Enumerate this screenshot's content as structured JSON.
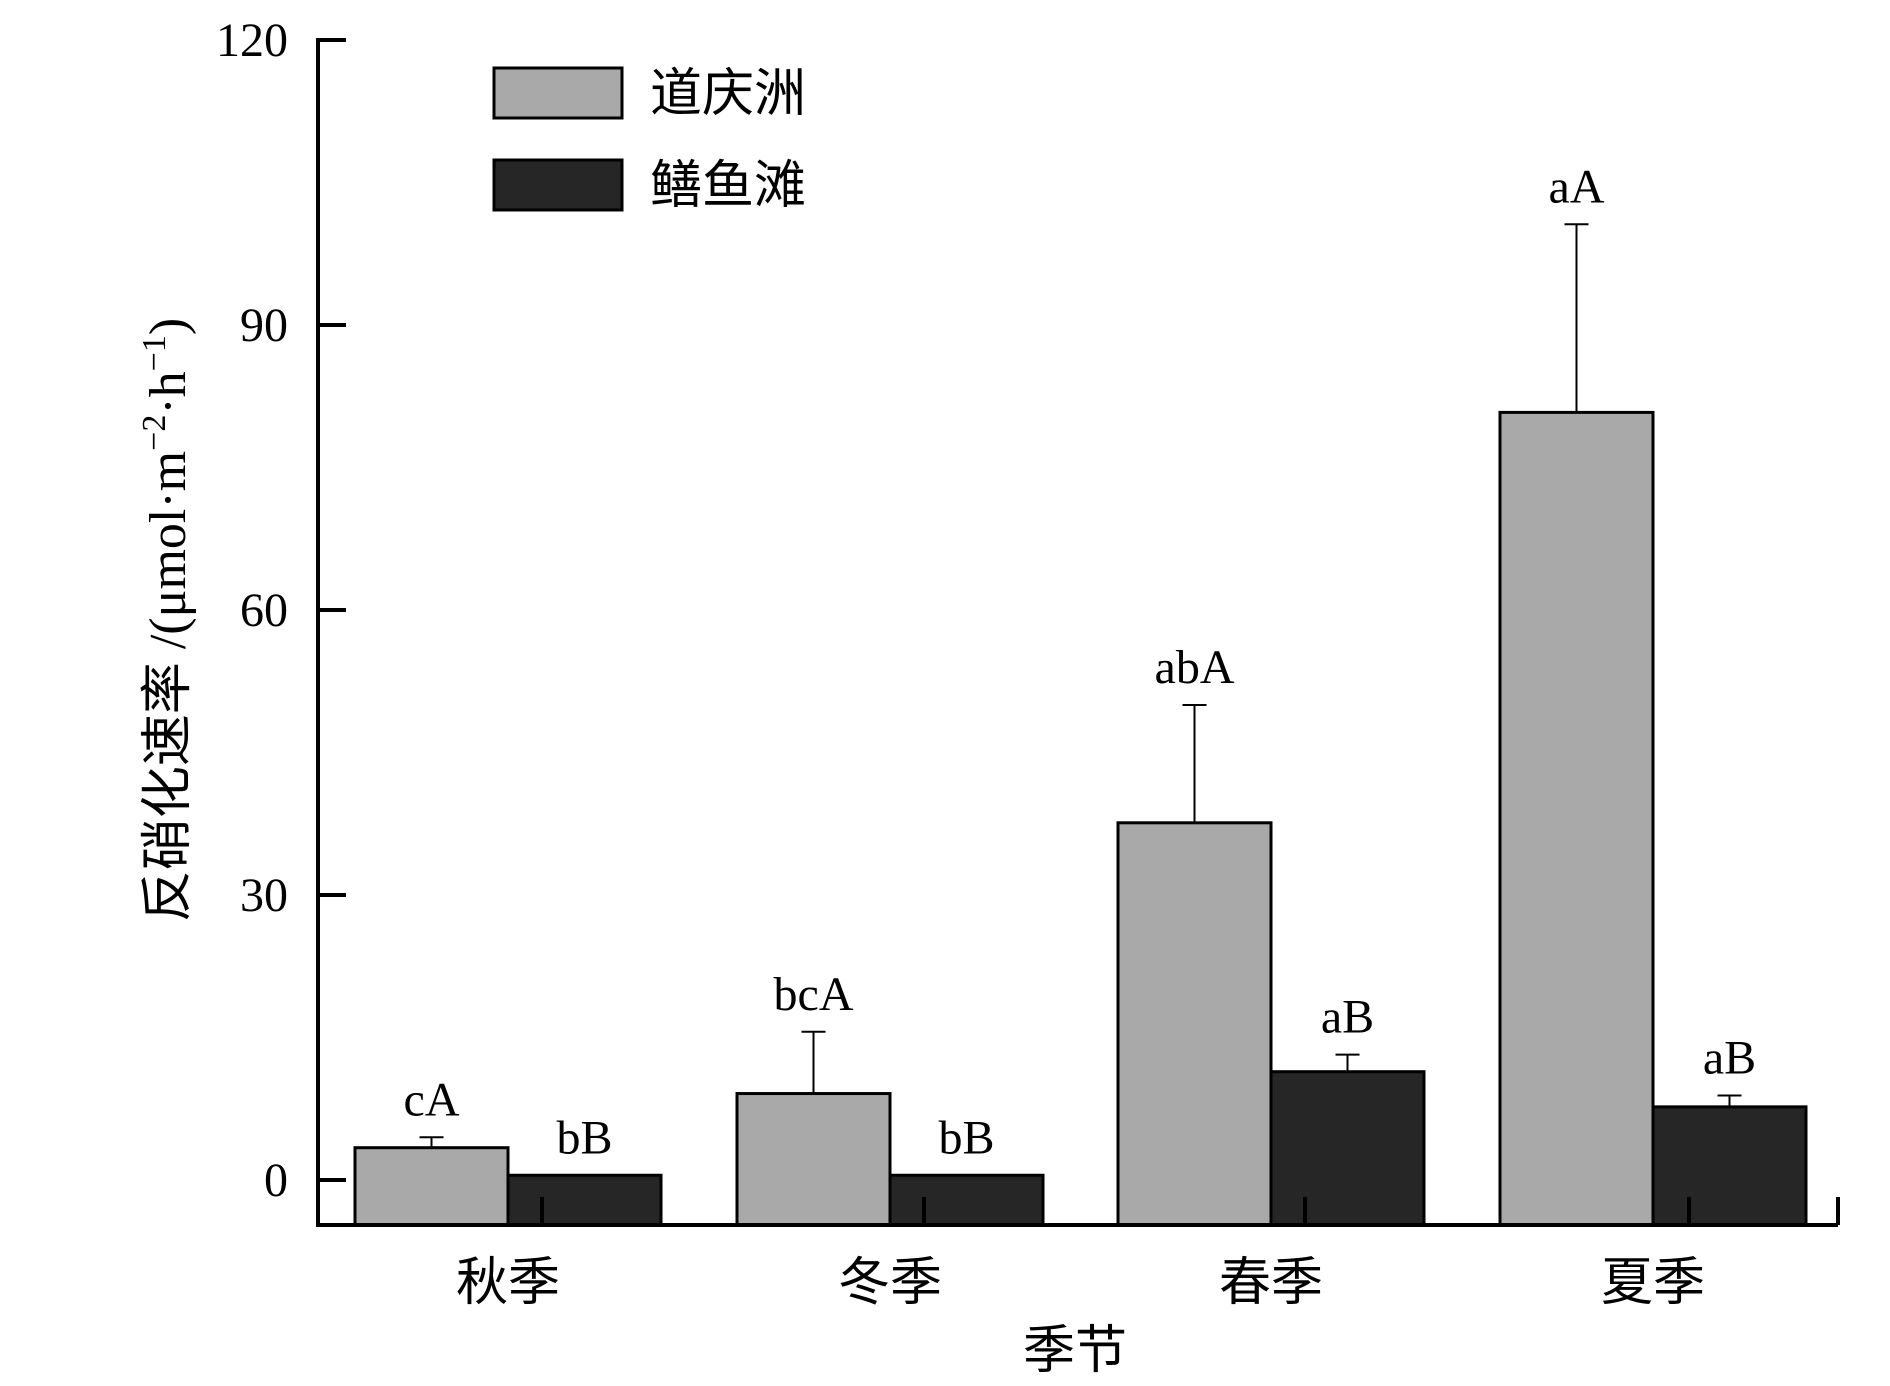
{
  "chart_data": {
    "type": "bar",
    "title": "",
    "xlabel": "季节",
    "ylabel": "反硝化速率 /(μmol·m⁻²·h⁻¹)",
    "ylabel_parts": {
      "main": "反硝化速率 /(μmol·m",
      "sup1": "−2",
      "mid": "·h",
      "sup2": "−1",
      "end": ")"
    },
    "categories": [
      "秋季",
      "冬季",
      "春季",
      "夏季"
    ],
    "ylim": [
      0,
      120
    ],
    "yticks": [
      0,
      30,
      60,
      90,
      120
    ],
    "y_tick_labels": [
      "0",
      "30",
      "60",
      "90",
      "120"
    ],
    "legend_position": "top-left",
    "grid": false,
    "series": [
      {
        "name": "道庆洲",
        "color": "#a9a9a9",
        "values": [
          3.4,
          9.1,
          37.6,
          80.8
        ],
        "errors": [
          1.1,
          6.5,
          12.4,
          19.8
        ],
        "labels": [
          "cA",
          "bcA",
          "abA",
          "aA"
        ]
      },
      {
        "name": "鳝鱼滩",
        "color": "#262626",
        "values": [
          0.5,
          0.5,
          11.4,
          7.7
        ],
        "errors": [
          0.0,
          0.0,
          1.8,
          1.2
        ],
        "labels": [
          "bB",
          "bB",
          "aB",
          "aB"
        ]
      }
    ]
  }
}
